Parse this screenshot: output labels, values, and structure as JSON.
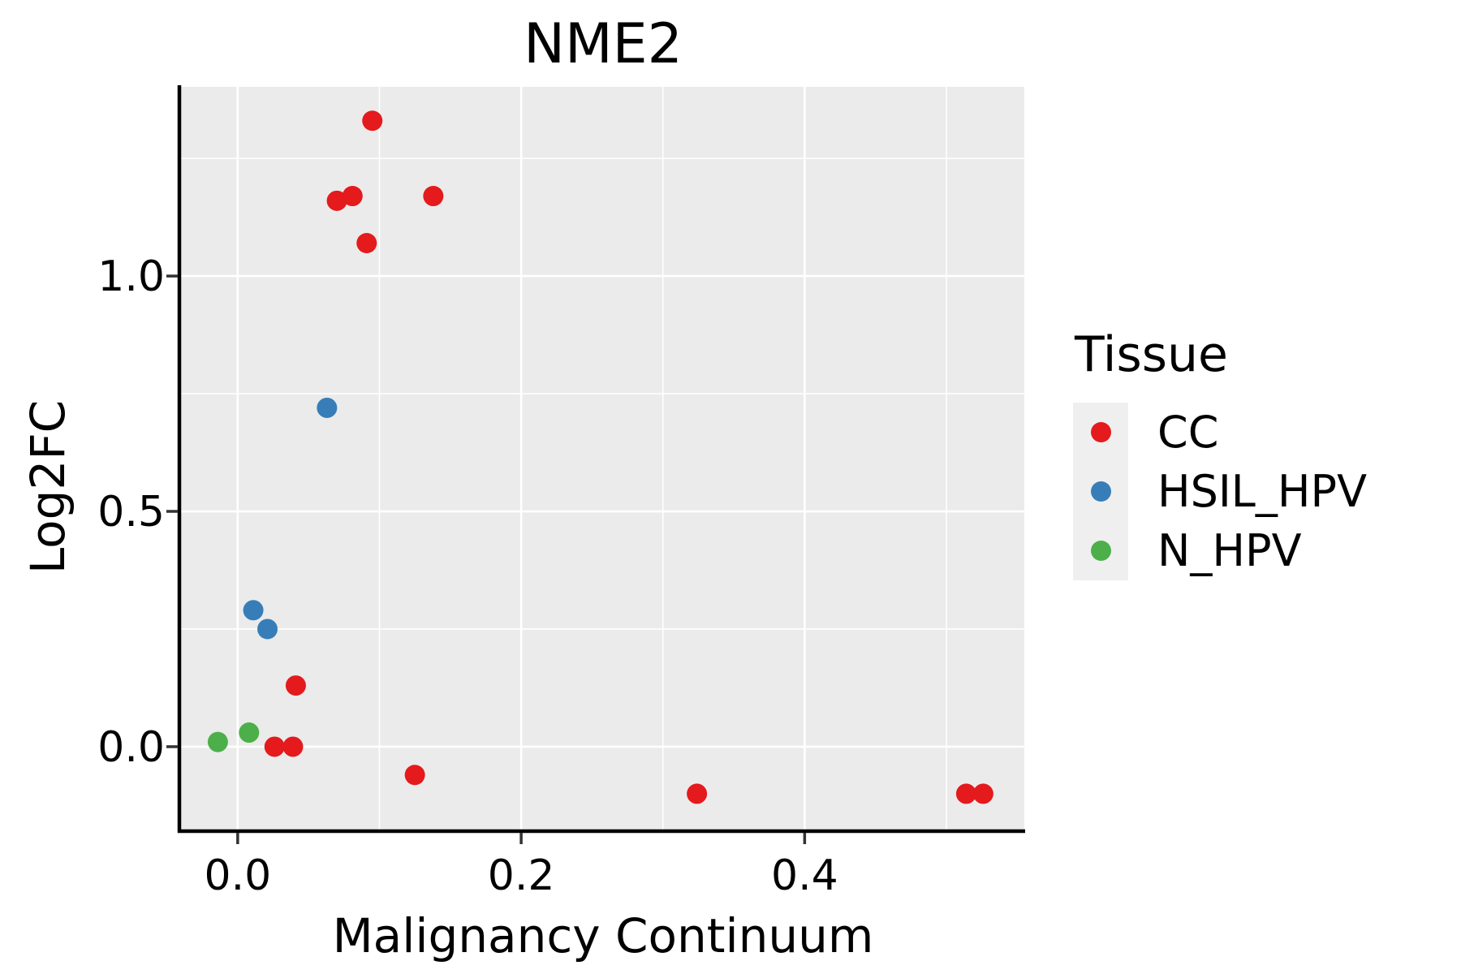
{
  "chart_data": {
    "type": "scatter",
    "title": "NME2",
    "xlabel": "Malignancy Continuum",
    "ylabel": "Log2FC",
    "legend_title": "Tissue",
    "legend_position": "right",
    "grid": true,
    "background": "#EBEBEB",
    "gridline_color": "#FFFFFF",
    "axis_line_color": "#000000",
    "tick_color": "#333333",
    "xlim": [
      -0.04,
      0.555
    ],
    "ylim": [
      -0.176,
      1.402
    ],
    "x_major_ticks": [
      0.0,
      0.2,
      0.4
    ],
    "x_minor_gridlines": [
      0.1,
      0.3,
      0.5
    ],
    "y_major_ticks": [
      0.0,
      0.5,
      1.0
    ],
    "y_minor_gridlines": [
      0.25,
      0.75,
      1.25
    ],
    "tick_label_format_decimals": 1,
    "series": [
      {
        "name": "CC",
        "color": "#E41A1C",
        "points": [
          [
            0.095,
            1.33
          ],
          [
            0.07,
            1.16
          ],
          [
            0.081,
            1.17
          ],
          [
            0.091,
            1.07
          ],
          [
            0.138,
            1.17
          ],
          [
            0.041,
            0.13
          ],
          [
            0.026,
            0.0
          ],
          [
            0.039,
            0.0
          ],
          [
            0.125,
            -0.06
          ],
          [
            0.324,
            -0.1
          ],
          [
            0.514,
            -0.1
          ],
          [
            0.526,
            -0.1
          ]
        ]
      },
      {
        "name": "HSIL_HPV",
        "color": "#377EB8",
        "points": [
          [
            0.063,
            0.72
          ],
          [
            0.011,
            0.29
          ],
          [
            0.021,
            0.25
          ]
        ]
      },
      {
        "name": "N_HPV",
        "color": "#4DAF4A",
        "points": [
          [
            0.008,
            0.03
          ],
          [
            -0.014,
            0.01
          ]
        ]
      }
    ]
  }
}
